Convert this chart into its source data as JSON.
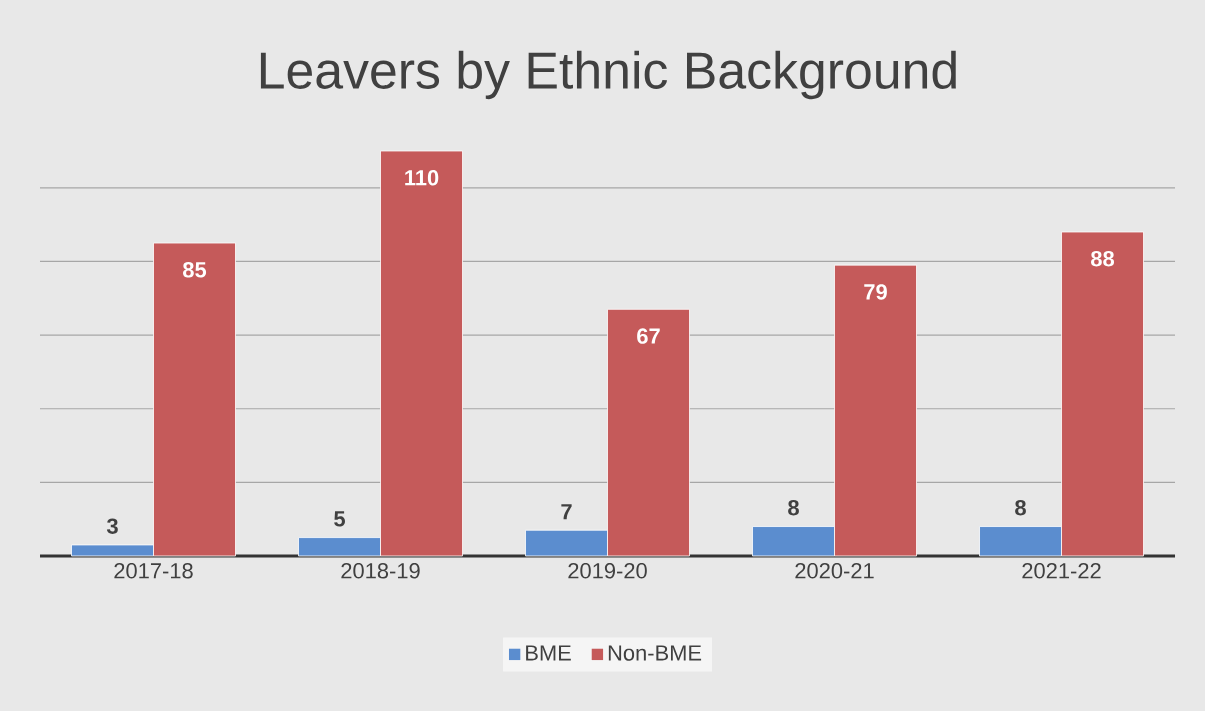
{
  "chart_data": {
    "type": "bar",
    "title": "Leavers by Ethnic Background",
    "categories": [
      "2017-18",
      "2018-19",
      "2019-20",
      "2020-21",
      "2021-22"
    ],
    "series": [
      {
        "name": "BME",
        "color": "#5b8dcf",
        "values": [
          3,
          5,
          7,
          8,
          8
        ]
      },
      {
        "name": "Non-BME",
        "color": "#c55a5a",
        "values": [
          85,
          110,
          67,
          79,
          88
        ]
      }
    ],
    "tick_labels": "x",
    "grid": "y",
    "legend": "bottom",
    "data_labels": true
  }
}
